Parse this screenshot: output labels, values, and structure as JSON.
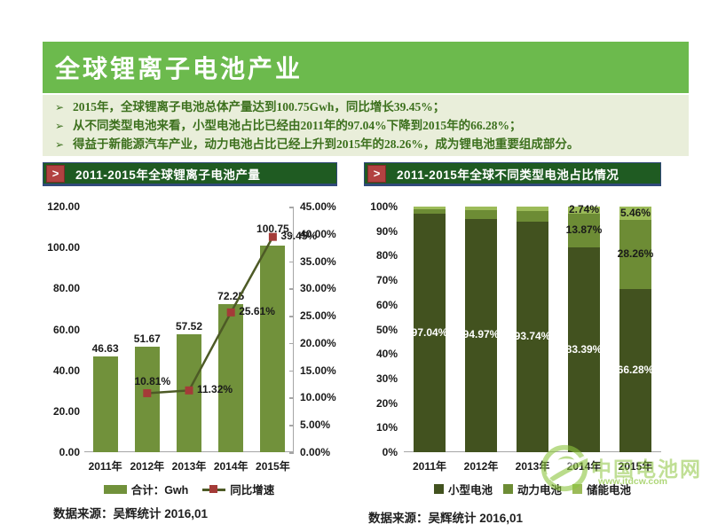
{
  "header": {
    "title": "全球锂离子电池产业",
    "bg": "#6CBA4D"
  },
  "bullets": {
    "marker": "➢",
    "items": [
      "2015年，全球锂离子电池总体产量达到100.75Gwh，同比增长39.45%；",
      "从不同类型电池来看，小型电池占比已经由2011年的97.04%下降到2015年的66.28%；",
      "得益于新能源汽车产业，动力电池占比已经上升到2015年的28.26%，成为锂电池重要组成部分。"
    ]
  },
  "left_panel": {
    "banner_arrow": ">",
    "banner_title": "2011-2015年全球锂离子电池产量",
    "source": "数据来源：吴辉统计 2016,01"
  },
  "right_panel": {
    "banner_arrow": ">",
    "banner_title": "2011-2015年全球不同类型电池占比情况",
    "source": "数据来源：吴辉统计 2016,01"
  },
  "watermark": {
    "name": "中国电池网",
    "url": "www.itdcw.com",
    "color": "#8DC63F"
  },
  "chart_data": [
    {
      "type": "bar",
      "subtype": "combo-bar-line-dual-axis",
      "title": "2011-2015年全球锂离子电池产量",
      "categories": [
        "2011年",
        "2012年",
        "2013年",
        "2014年",
        "2015年"
      ],
      "series": [
        {
          "name": "合计：Gwh",
          "type": "bar",
          "axis": "left",
          "color": "#71913B",
          "values": [
            46.63,
            51.67,
            57.52,
            72.25,
            100.75
          ],
          "labels": [
            "46.63",
            "51.67",
            "57.52",
            "72.25",
            "100.75"
          ]
        },
        {
          "name": "同比增速",
          "type": "line",
          "axis": "right",
          "color": "#4D5A26",
          "marker_color": "#A43B38",
          "values": [
            null,
            10.81,
            11.32,
            25.61,
            39.45
          ],
          "labels": [
            null,
            "10.81%",
            "11.32%",
            "25.61%",
            "39.45%"
          ]
        }
      ],
      "left_axis": {
        "min": 0,
        "max": 120,
        "step": 20,
        "labels": [
          "120.00",
          "100.00",
          "80.00",
          "60.00",
          "40.00",
          "20.00",
          "0.00"
        ]
      },
      "right_axis": {
        "min": 0,
        "max": 45,
        "step": 5,
        "labels": [
          "45.00%",
          "40.00%",
          "35.00%",
          "30.00%",
          "25.00%",
          "20.00%",
          "15.00%",
          "10.00%",
          "5.00%",
          "0.00%"
        ]
      },
      "grid": false,
      "legend_position": "bottom"
    },
    {
      "type": "bar",
      "subtype": "stacked-100pct",
      "title": "2011-2015年全球不同类型电池占比情况",
      "categories": [
        "2011年",
        "2012年",
        "2013年",
        "2014年",
        "2015年"
      ],
      "series": [
        {
          "name": "小型电池",
          "color": "#42521F",
          "values": [
            97.04,
            94.97,
            93.74,
            83.39,
            66.28
          ],
          "labels": [
            "97.04%",
            "94.97%",
            "93.74%",
            "83.39%",
            "66.28%"
          ],
          "label_color": "#ffffff"
        },
        {
          "name": "动力电池",
          "color": "#6D8C35",
          "values": [
            2.0,
            3.7,
            4.5,
            13.87,
            28.26
          ],
          "labels": [
            null,
            null,
            null,
            "13.87%",
            "28.26%"
          ],
          "label_color": "#1A1A1A"
        },
        {
          "name": "储能电池",
          "color": "#9CBB59",
          "values": [
            0.96,
            1.33,
            1.76,
            2.74,
            5.46
          ],
          "labels": [
            null,
            null,
            null,
            "2.74%",
            "5.46%"
          ],
          "label_color": "#1A1A1A"
        }
      ],
      "y_axis": {
        "min": 0,
        "max": 100,
        "step": 10,
        "labels": [
          "100%",
          "90%",
          "80%",
          "70%",
          "60%",
          "50%",
          "40%",
          "30%",
          "20%",
          "10%",
          "0%"
        ]
      },
      "grid": false,
      "legend_position": "bottom"
    }
  ]
}
